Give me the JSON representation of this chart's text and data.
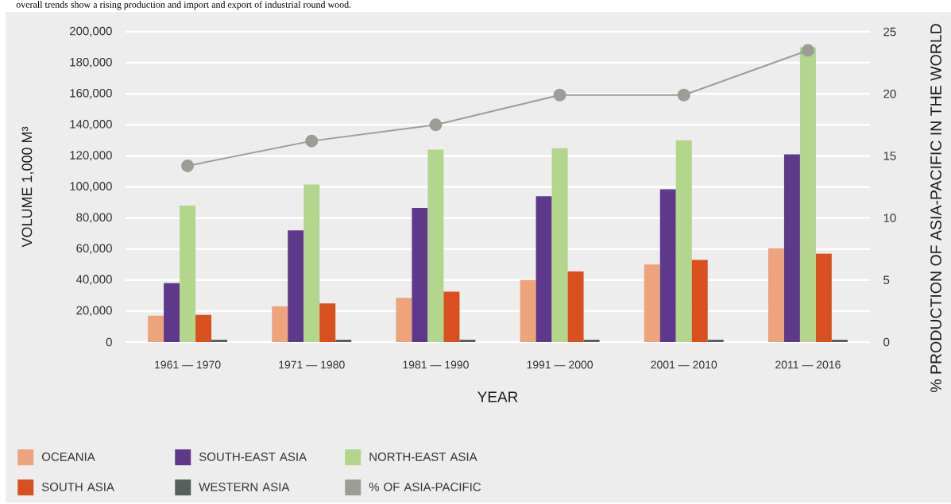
{
  "chart_data": {
    "type": "bar",
    "annotations": [
      "overall trends show a rising production and import and export of industrial round wood."
    ],
    "xlabel": "YEAR",
    "ylabel": "VOLUME 1,000 M³",
    "y2label": "% PRODUCTION OF ASIA-PACIFIC IN THE WORLD",
    "categories": [
      "1961 — 1970",
      "1971 — 1980",
      "1981 — 1990",
      "1991 — 2000",
      "2001 — 2010",
      "2011 — 2016"
    ],
    "series": [
      {
        "name": "OCEANIA",
        "color": "#eea37a",
        "values": [
          17000,
          23000,
          28500,
          40000,
          50000,
          60500
        ]
      },
      {
        "name": "SOUTH-EAST ASIA",
        "color": "#5e388b",
        "values": [
          38000,
          72000,
          86500,
          94000,
          98500,
          121000
        ]
      },
      {
        "name": "NORTH-EAST ASIA",
        "color": "#b2d68b",
        "values": [
          88000,
          101500,
          124000,
          125000,
          130000,
          190000
        ]
      },
      {
        "name": "SOUTH ASIA",
        "color": "#d9501e",
        "values": [
          17500,
          25000,
          32500,
          45500,
          53000,
          57000
        ]
      },
      {
        "name": "WESTERN ASIA",
        "color": "#56605a",
        "values": [
          1500,
          1500,
          1500,
          1500,
          1500,
          1500
        ]
      },
      {
        "name": "% OF ASIA-PACIFIC",
        "type": "line",
        "axis": "y2",
        "marker": "circle",
        "color": "#9c9e96",
        "values": [
          14.2,
          16.2,
          17.5,
          19.9,
          19.9,
          23.5
        ]
      }
    ],
    "ylim": [
      0,
      200000
    ],
    "yticks": [
      0,
      {
        "value": 20000,
        "label": "20,000"
      },
      {
        "value": 40000,
        "label": "40,000"
      },
      {
        "value": 60000,
        "label": "60,000"
      },
      {
        "value": 80000,
        "label": "80,000"
      },
      {
        "value": 100000,
        "label": "100,000"
      },
      {
        "value": 120000,
        "label": "120,000"
      },
      {
        "value": 140000,
        "label": "140,000"
      },
      {
        "value": 160000,
        "label": "160,000"
      },
      {
        "value": 180000,
        "label": "180,000"
      },
      {
        "value": 200000,
        "label": "200,000"
      }
    ],
    "y2lim": [
      0,
      25
    ],
    "y2ticks": [
      0,
      5,
      10,
      15,
      20,
      25
    ],
    "grid": "y",
    "legend": "bottom left"
  }
}
